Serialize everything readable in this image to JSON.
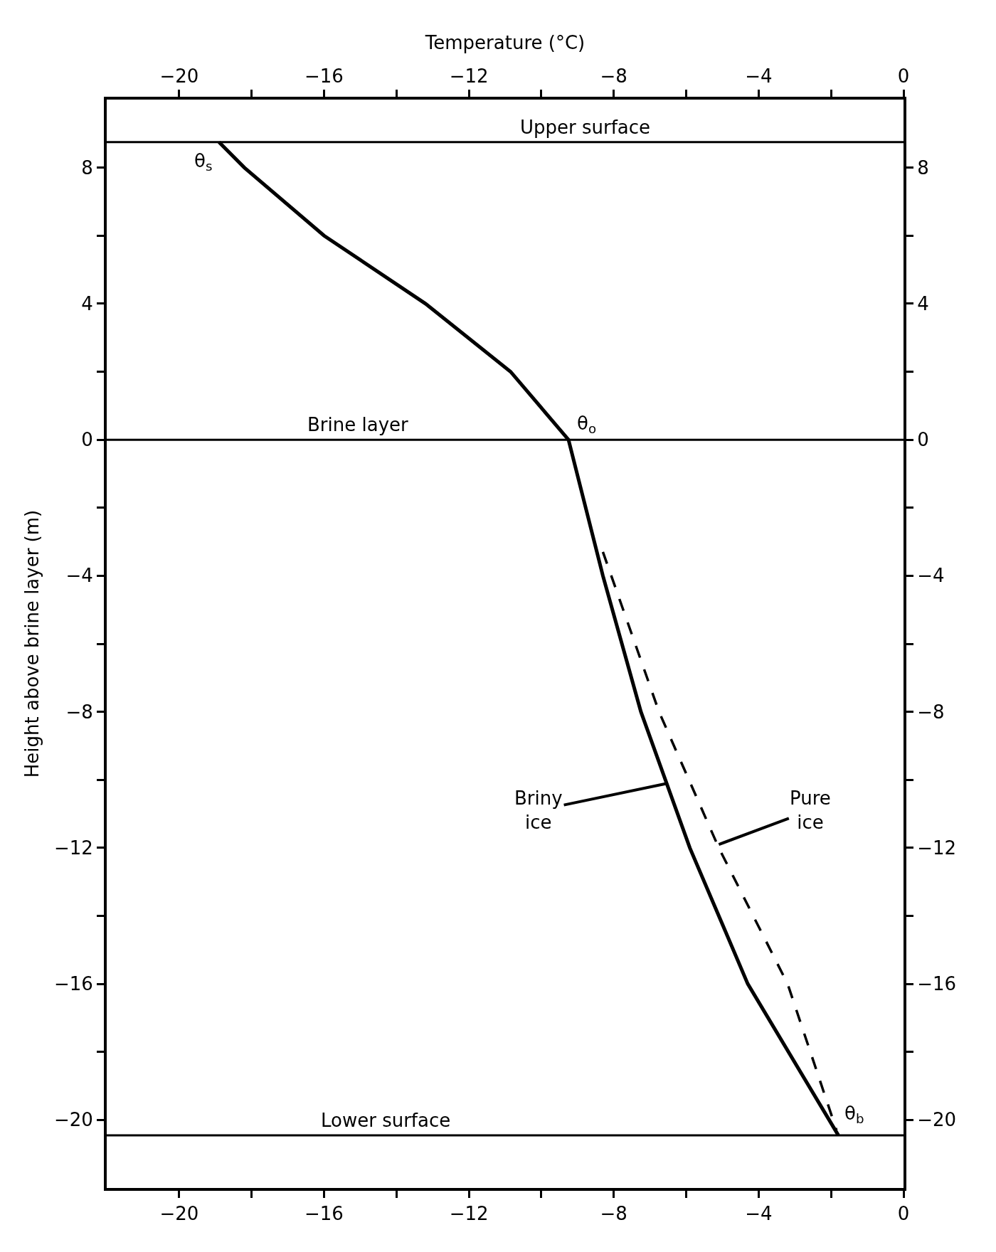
{
  "chart_data": {
    "type": "line",
    "x2label": "Temperature (°C)",
    "ylabel": "Height above brine layer (m)",
    "xlim": [
      -22,
      0
    ],
    "ylim": [
      -22,
      10
    ],
    "x2lim": [
      -22,
      0
    ],
    "y2lim": [
      -22,
      10
    ],
    "xticks": [
      -20,
      {
        "value": -18,
        "label": null
      },
      -16,
      {
        "value": -14,
        "label": null
      },
      -12,
      {
        "value": -10,
        "label": null
      },
      -8,
      {
        "value": -6,
        "label": null
      },
      -4,
      {
        "value": -2,
        "label": null
      },
      0
    ],
    "x2ticks": [
      -20,
      {
        "value": -18,
        "label": null
      },
      -16,
      {
        "value": -14,
        "label": null
      },
      -12,
      {
        "value": -10,
        "label": null
      },
      -8,
      {
        "value": -6,
        "label": null
      },
      -4,
      {
        "value": -2,
        "label": null
      },
      0
    ],
    "yticks": [
      -20,
      {
        "value": -18,
        "label": null
      },
      -16,
      {
        "value": -14,
        "label": null
      },
      -12,
      {
        "value": -10,
        "label": null
      },
      -8,
      {
        "value": -6,
        "label": null
      },
      -4,
      {
        "value": -2,
        "label": null
      },
      0,
      {
        "value": 2,
        "label": null
      },
      4,
      {
        "value": 6,
        "label": null
      },
      8
    ],
    "y2ticks": [
      -20,
      {
        "value": -18,
        "label": null
      },
      -16,
      {
        "value": -14,
        "label": null
      },
      -12,
      {
        "value": -10,
        "label": null
      },
      -8,
      {
        "value": -6,
        "label": null
      },
      -4,
      {
        "value": -2,
        "label": null
      },
      0,
      {
        "value": 2,
        "label": null
      },
      4,
      {
        "value": 6,
        "label": null
      },
      8
    ],
    "marker": "none",
    "series": [
      {
        "color": "#000000",
        "line_style": "solid",
        "x": [
          -18.9,
          -18.2,
          -16.0,
          -13.2,
          -10.85,
          -9.25,
          -8.3,
          -7.25,
          -5.9,
          -4.3,
          -1.8
        ],
        "values": [
          8.75,
          8,
          6,
          4,
          2,
          0,
          -4,
          -8,
          -12,
          -16,
          -20.45
        ]
      },
      {
        "color": "#000000",
        "line_style": "dashed",
        "x": [
          -8.3,
          -6.75,
          -5.1,
          -3.2,
          -1.85
        ],
        "values": [
          -3.3,
          -8,
          -12,
          -16,
          -20.3
        ]
      }
    ],
    "ref_lines": [
      {
        "axis": "y",
        "value": 8.75,
        "label": "Upper surface"
      },
      {
        "axis": "y",
        "value": 0,
        "label": "Brine layer"
      },
      {
        "axis": "y",
        "value": -20.45,
        "label": "Lower surface"
      }
    ],
    "annotations": [
      {
        "text": "θ$_{s}$",
        "x": -18.9,
        "y": 8.75
      },
      {
        "text": "θ$_{o}$",
        "x": -9.25,
        "y": 0
      },
      {
        "text": "θ$_{b}$",
        "x": -1.85,
        "y": -20.3
      },
      {
        "text": "Briny\nice",
        "x": -6.5,
        "y": -10.1
      },
      {
        "text": "Pure\nice",
        "x": -5.1,
        "y": -11.9
      }
    ]
  }
}
